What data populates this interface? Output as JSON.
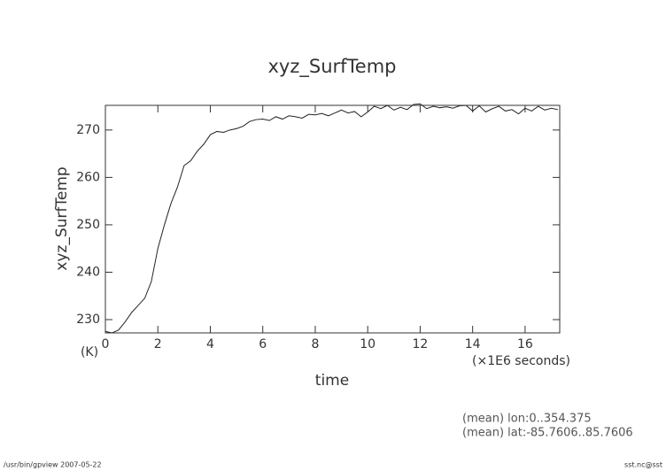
{
  "chart_data": {
    "type": "line",
    "title": "xyz_SurfTemp",
    "y_label": "xyz_SurfTemp",
    "y_unit": "(K)",
    "x_label": "time",
    "x_unit": "(×1E6 seconds)",
    "annotations": [
      "(mean) lon:0..354.375",
      "(mean) lat:-85.7606..85.7606"
    ],
    "footer_left": "/usr/bin/gpview  2007-05-22",
    "footer_right": "sst.nc@sst",
    "xlim": [
      0,
      17.32
    ],
    "ylim": [
      227.2,
      275.2
    ],
    "xticks": [
      0,
      2,
      4,
      6,
      8,
      10,
      12,
      14,
      16
    ],
    "yticks": [
      230,
      240,
      250,
      260,
      270
    ],
    "x": [
      0,
      0.25,
      0.5,
      0.75,
      1.0,
      1.25,
      1.5,
      1.75,
      2.0,
      2.25,
      2.5,
      2.75,
      3.0,
      3.25,
      3.5,
      3.75,
      4.0,
      4.25,
      4.5,
      4.75,
      5.0,
      5.25,
      5.5,
      5.75,
      6.0,
      6.25,
      6.5,
      6.75,
      7.0,
      7.25,
      7.5,
      7.75,
      8.0,
      8.25,
      8.5,
      8.75,
      9.0,
      9.25,
      9.5,
      9.75,
      10.0,
      10.25,
      10.5,
      10.75,
      11.0,
      11.25,
      11.5,
      11.75,
      12.0,
      12.25,
      12.5,
      12.75,
      13.0,
      13.25,
      13.5,
      13.75,
      14.0,
      14.25,
      14.5,
      14.75,
      15.0,
      15.25,
      15.5,
      15.75,
      16.0,
      16.25,
      16.5,
      16.75,
      17.0,
      17.25
    ],
    "series": [
      {
        "name": "xyz_SurfTemp",
        "color": "#222222",
        "values": [
          227.5,
          227.2,
          227.8,
          229.5,
          231.5,
          233,
          234.5,
          238,
          245,
          250,
          254.5,
          258,
          262.5,
          263.5,
          265.5,
          267,
          269,
          269.7,
          269.5,
          270,
          270.3,
          270.8,
          271.8,
          272.2,
          272.3,
          272,
          272.8,
          272.3,
          273,
          272.8,
          272.5,
          273.3,
          273.2,
          273.5,
          273,
          273.6,
          274.2,
          273.6,
          273.9,
          272.8,
          273.8,
          275,
          274.5,
          275.2,
          274.2,
          274.8,
          274.3,
          275.4,
          275.5,
          274.5,
          275,
          274.7,
          274.9,
          274.6,
          275.1,
          275.2,
          274,
          275.1,
          273.8,
          274.5,
          275,
          274,
          274.3,
          273.4,
          274.6,
          274,
          275,
          274.2,
          274.6,
          274.3
        ]
      }
    ]
  }
}
